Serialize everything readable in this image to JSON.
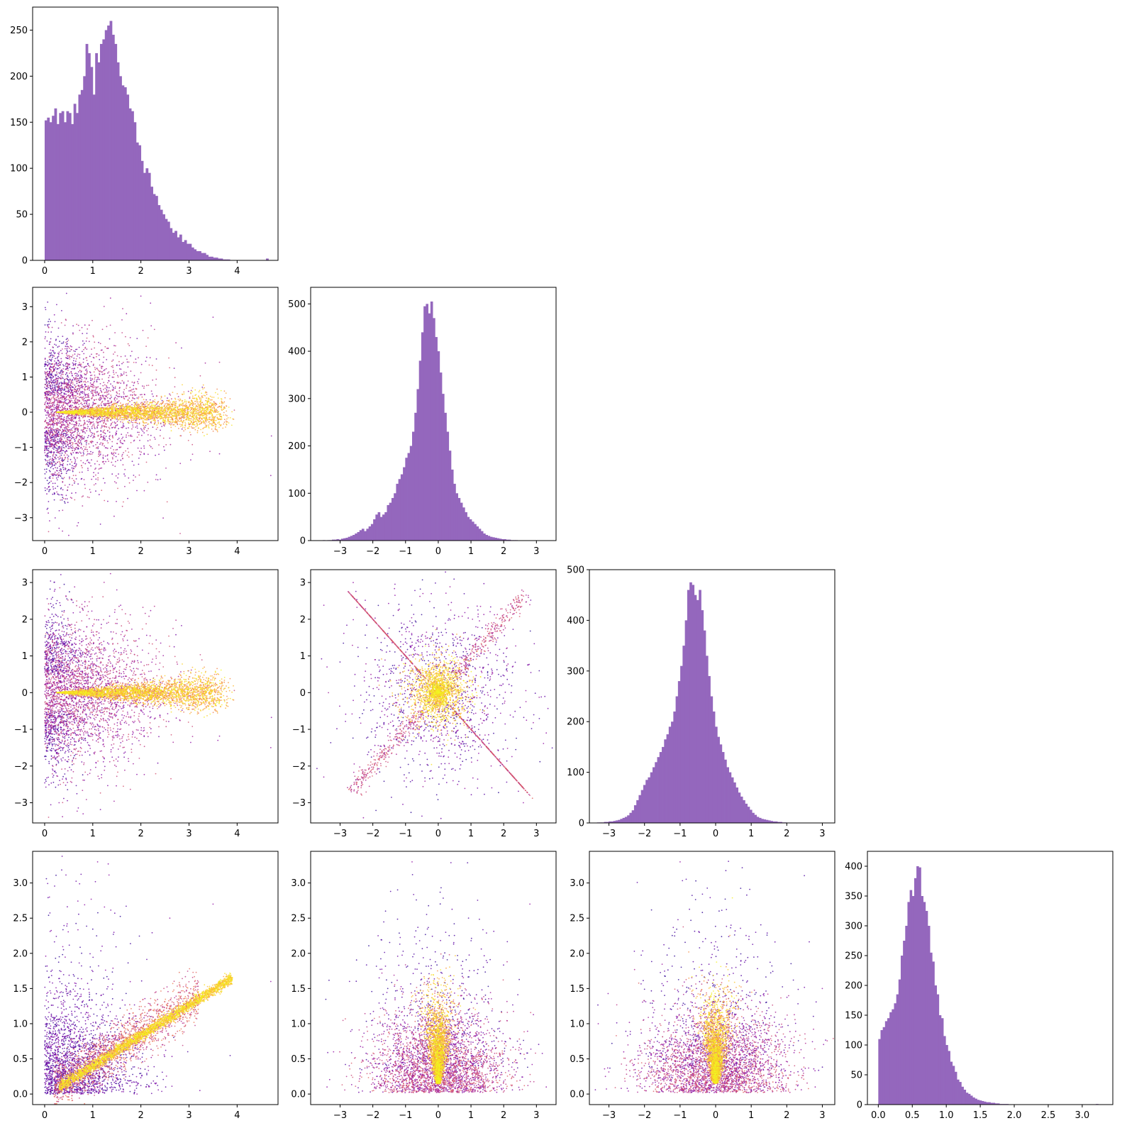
{
  "figure": {
    "hist_color": "#9467bd",
    "scatter_colormap": "plasma",
    "point_counts": {
      "scatter": 10000
    }
  },
  "chart_data": [
    {
      "type": "bar",
      "panel": "hist",
      "row": 0,
      "col": 0,
      "bin_width": 0.05,
      "x_start": 0.0,
      "values": [
        152,
        155,
        150,
        157,
        165,
        148,
        160,
        162,
        150,
        162,
        160,
        148,
        170,
        160,
        180,
        185,
        200,
        235,
        225,
        210,
        180,
        225,
        215,
        235,
        240,
        250,
        255,
        260,
        245,
        235,
        215,
        200,
        190,
        188,
        180,
        165,
        162,
        150,
        128,
        125,
        108,
        95,
        100,
        95,
        80,
        72,
        70,
        60,
        55,
        50,
        45,
        42,
        35,
        30,
        32,
        25,
        28,
        20,
        22,
        18,
        18,
        14,
        12,
        10,
        10,
        8,
        8,
        6,
        4,
        4,
        3,
        3,
        2,
        2,
        1,
        1,
        1,
        0,
        0,
        0,
        0,
        0,
        0,
        0,
        0,
        0,
        0,
        0,
        0,
        0,
        0,
        0,
        2
      ],
      "xlim": [
        -0.25,
        4.85
      ],
      "ylim": [
        0,
        275
      ],
      "xticks": [
        0,
        1,
        2,
        3,
        4
      ],
      "yticks": [
        0,
        50,
        100,
        150,
        200,
        250
      ]
    },
    {
      "type": "scatter",
      "panel": "scatter-plume",
      "row": 1,
      "col": 0,
      "xlim": [
        -0.25,
        4.85
      ],
      "ylim": [
        -3.65,
        3.55
      ],
      "xticks": [
        0,
        1,
        2,
        3,
        4
      ],
      "yticks": [
        -3,
        -2,
        -1,
        0,
        1,
        2,
        3
      ],
      "outliers": [
        [
          2.0,
          3.3
        ],
        [
          4.7,
          -1.8
        ],
        [
          0.5,
          -3.5
        ],
        [
          0.3,
          -3.3
        ],
        [
          3.5,
          2.7
        ],
        [
          2.2,
          3.1
        ],
        [
          1.7,
          2.8
        ]
      ]
    },
    {
      "type": "bar",
      "panel": "hist",
      "row": 1,
      "col": 1,
      "bin_width": 0.07,
      "x_start": -3.6,
      "values": [
        0,
        1,
        0,
        1,
        1,
        2,
        2,
        3,
        2,
        4,
        5,
        6,
        8,
        10,
        12,
        15,
        18,
        22,
        25,
        20,
        25,
        30,
        35,
        45,
        55,
        60,
        50,
        55,
        60,
        75,
        80,
        90,
        100,
        120,
        130,
        140,
        155,
        175,
        185,
        200,
        230,
        270,
        320,
        380,
        440,
        495,
        500,
        480,
        505,
        470,
        430,
        400,
        355,
        310,
        270,
        230,
        190,
        150,
        120,
        100,
        90,
        80,
        70,
        60,
        50,
        45,
        40,
        35,
        30,
        25,
        20,
        15,
        12,
        10,
        8,
        7,
        6,
        5,
        4,
        3,
        3,
        2,
        2,
        1,
        1,
        1
      ],
      "xlim": [
        -3.9,
        3.6
      ],
      "ylim": [
        0,
        535
      ],
      "xticks": [
        -3,
        -2,
        -1,
        0,
        1,
        2,
        3
      ],
      "yticks": [
        0,
        100,
        200,
        300,
        400,
        500
      ]
    },
    {
      "type": "scatter",
      "panel": "scatter-plume",
      "row": 2,
      "col": 0,
      "xlim": [
        -0.25,
        4.85
      ],
      "ylim": [
        -3.55,
        3.35
      ],
      "xticks": [
        0,
        1,
        2,
        3,
        4
      ],
      "yticks": [
        -3,
        -2,
        -1,
        0,
        1,
        2,
        3
      ],
      "outliers": [
        [
          4.7,
          -1.5
        ],
        [
          0.8,
          -3.3
        ],
        [
          0.3,
          -3.0
        ],
        [
          3.6,
          -1.3
        ],
        [
          1.5,
          2.8
        ]
      ]
    },
    {
      "type": "scatter",
      "panel": "scatter-star",
      "row": 2,
      "col": 1,
      "xlim": [
        -3.9,
        3.6
      ],
      "ylim": [
        -3.55,
        3.35
      ],
      "xticks": [
        -3,
        -2,
        -1,
        0,
        1,
        2,
        3
      ],
      "yticks": [
        -3,
        -2,
        -1,
        0,
        1,
        2,
        3
      ],
      "outliers": [
        [
          -2.6,
          3.0
        ],
        [
          -3.5,
          -2.3
        ],
        [
          2.6,
          -3.0
        ],
        [
          3.3,
          -1.1
        ],
        [
          -3.4,
          0.7
        ]
      ]
    },
    {
      "type": "bar",
      "panel": "hist",
      "row": 2,
      "col": 2,
      "bin_width": 0.065,
      "x_start": -3.4,
      "values": [
        0,
        1,
        1,
        1,
        2,
        2,
        3,
        3,
        4,
        5,
        6,
        8,
        10,
        12,
        15,
        20,
        25,
        35,
        45,
        55,
        65,
        75,
        85,
        90,
        100,
        110,
        120,
        130,
        140,
        150,
        165,
        175,
        190,
        200,
        220,
        250,
        280,
        310,
        350,
        400,
        460,
        475,
        470,
        450,
        440,
        460,
        420,
        380,
        330,
        290,
        250,
        220,
        190,
        170,
        155,
        140,
        125,
        110,
        100,
        90,
        80,
        70,
        60,
        52,
        45,
        38,
        32,
        26,
        20,
        16,
        12,
        10,
        8,
        7,
        6,
        5,
        4,
        3,
        3,
        2,
        2,
        1,
        1
      ],
      "xlim": [
        -3.55,
        3.35
      ],
      "ylim": [
        0,
        500
      ],
      "xticks": [
        -3,
        -2,
        -1,
        0,
        1,
        2,
        3
      ],
      "yticks": [
        0,
        100,
        200,
        300,
        400,
        500
      ]
    },
    {
      "type": "scatter",
      "panel": "scatter-linear",
      "row": 3,
      "col": 0,
      "xlim": [
        -0.25,
        4.85
      ],
      "ylim": [
        -0.15,
        3.45
      ],
      "xticks": [
        0,
        1,
        2,
        3,
        4
      ],
      "yticks": [
        0.0,
        0.5,
        1.0,
        1.5,
        2.0,
        2.5,
        3.0
      ],
      "outliers": [
        [
          1.1,
          3.3
        ],
        [
          4.7,
          1.6
        ],
        [
          3.5,
          2.7
        ],
        [
          0.1,
          2.8
        ],
        [
          2.6,
          2.5
        ]
      ]
    },
    {
      "type": "scatter",
      "panel": "scatter-cone",
      "row": 3,
      "col": 1,
      "xlim": [
        -3.9,
        3.6
      ],
      "ylim": [
        -0.15,
        3.45
      ],
      "xticks": [
        -3,
        -2,
        -1,
        0,
        1,
        2,
        3
      ],
      "yticks": [
        0.0,
        0.5,
        1.0,
        1.5,
        2.0,
        2.5,
        3.0
      ],
      "outliers": [
        [
          -0.8,
          3.3
        ],
        [
          3.3,
          0.1
        ],
        [
          -3.2,
          0.6
        ],
        [
          -3.4,
          0.1
        ],
        [
          2.8,
          2.7
        ]
      ]
    },
    {
      "type": "scatter",
      "panel": "scatter-cone",
      "row": 3,
      "col": 2,
      "xlim": [
        -3.55,
        3.35
      ],
      "ylim": [
        -0.15,
        3.45
      ],
      "xticks": [
        -3,
        -2,
        -1,
        0,
        1,
        2,
        3
      ],
      "yticks": [
        0.0,
        0.5,
        1.0,
        1.5,
        2.0,
        2.5,
        3.0
      ],
      "outliers": [
        [
          -1.0,
          3.3
        ],
        [
          3.0,
          1.5
        ],
        [
          -3.3,
          1.0
        ],
        [
          -3.1,
          0.25
        ],
        [
          2.8,
          0.1
        ]
      ]
    },
    {
      "type": "bar",
      "panel": "hist",
      "row": 3,
      "col": 3,
      "bin_width": 0.033,
      "x_start": 0.0,
      "values": [
        110,
        125,
        130,
        140,
        145,
        155,
        160,
        170,
        185,
        210,
        250,
        275,
        300,
        340,
        360,
        350,
        380,
        400,
        398,
        350,
        340,
        325,
        300,
        255,
        240,
        200,
        185,
        150,
        145,
        115,
        100,
        90,
        72,
        65,
        55,
        42,
        38,
        30,
        25,
        20,
        18,
        15,
        12,
        10,
        8,
        7,
        6,
        5,
        4,
        4,
        3,
        3,
        2,
        2,
        1,
        1,
        1,
        1,
        0,
        0,
        0,
        0,
        0,
        0,
        0,
        0,
        0,
        0,
        0,
        0,
        0,
        0,
        0,
        0,
        0,
        0,
        0,
        0,
        0,
        0,
        0,
        0,
        0,
        0,
        0,
        0,
        0,
        0,
        0,
        0,
        0,
        0,
        0,
        0,
        0,
        0,
        0,
        1
      ],
      "xlim": [
        -0.16,
        3.45
      ],
      "ylim": [
        0,
        425
      ],
      "xticks": [
        0.0,
        0.5,
        1.0,
        1.5,
        2.0,
        2.5,
        3.0
      ],
      "yticks": [
        0,
        50,
        100,
        150,
        200,
        250,
        300,
        350,
        400
      ]
    }
  ]
}
